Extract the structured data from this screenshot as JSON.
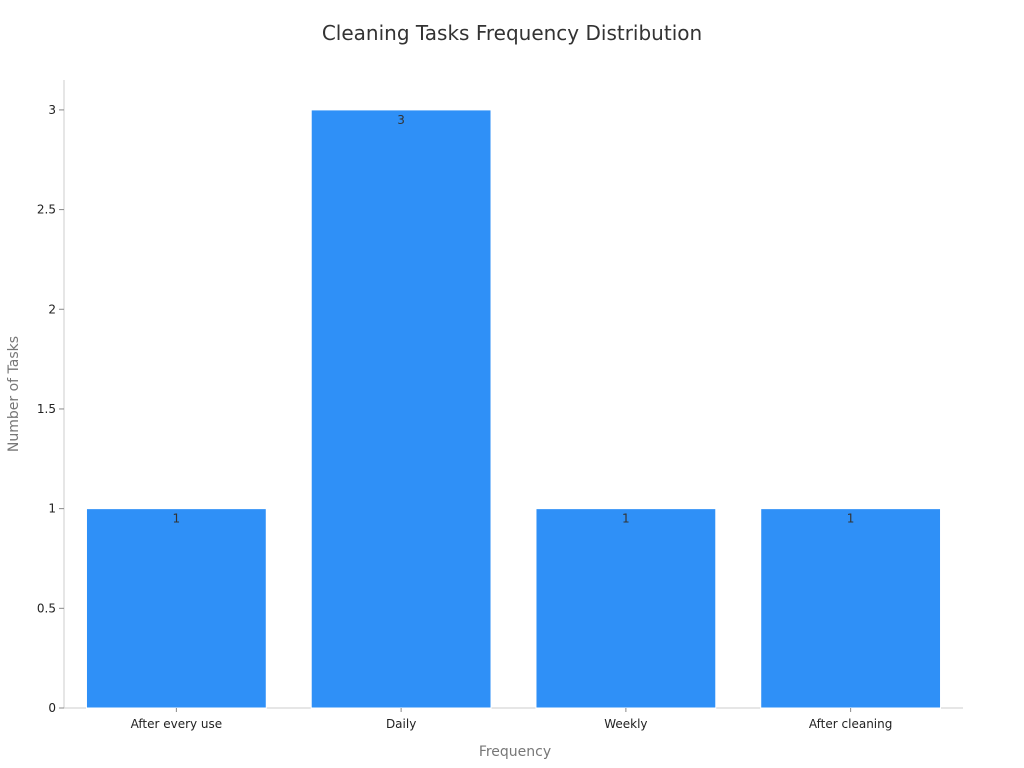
{
  "chart_data": {
    "type": "bar",
    "title": "Cleaning Tasks Frequency Distribution",
    "xlabel": "Frequency",
    "ylabel": "Number of Tasks",
    "categories": [
      "After every use",
      "Daily",
      "Weekly",
      "After cleaning"
    ],
    "values": [
      1,
      3,
      1,
      1
    ],
    "data_labels": [
      "1",
      "3",
      "1",
      "1"
    ],
    "ylim": [
      0,
      3.15
    ],
    "yticks": [
      0,
      0.5,
      1,
      1.5,
      2,
      2.5,
      3
    ],
    "ytick_labels": [
      "0",
      "0.5",
      "1",
      "1.5",
      "2",
      "2.5",
      "3"
    ],
    "grid": false,
    "legend": "none",
    "bar_color": "#2f90f7"
  }
}
